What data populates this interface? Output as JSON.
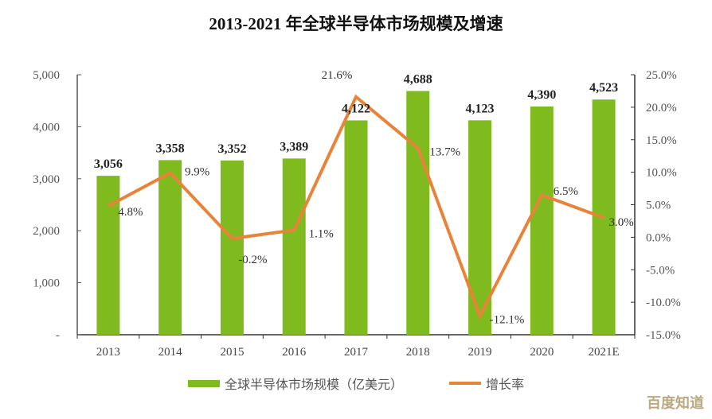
{
  "title": "2013-2021 年全球半导体市场规模及增速",
  "legend": {
    "bar_label": "全球半导体市场规模（亿美元）",
    "line_label": "增长率"
  },
  "watermark": "百度知道",
  "colors": {
    "bar": "#7fba1e",
    "line": "#e8833a",
    "axis": "#555555"
  },
  "chart_data": {
    "type": "bar+line",
    "title": "2013-2021 年全球半导体市场规模及增速",
    "categories": [
      "2013",
      "2014",
      "2015",
      "2016",
      "2017",
      "2018",
      "2019",
      "2020",
      "2021E"
    ],
    "series": [
      {
        "name": "全球半导体市场规模（亿美元）",
        "type": "bar",
        "axis": "left",
        "values": [
          3056,
          3358,
          3352,
          3389,
          4122,
          4688,
          4123,
          4390,
          4523
        ],
        "labels": [
          "3,056",
          "3,358",
          "3,352",
          "3,389",
          "4,122",
          "4,688",
          "4,123",
          "4,390",
          "4,523"
        ]
      },
      {
        "name": "增长率",
        "type": "line",
        "axis": "right",
        "values": [
          4.8,
          9.9,
          -0.2,
          1.1,
          21.6,
          13.7,
          -12.1,
          6.5,
          3.0
        ],
        "labels": [
          "4.8%",
          "9.9%",
          "-0.2%",
          "1.1%",
          "21.6%",
          "13.7%",
          "-12.1%",
          "6.5%",
          "3.0%"
        ]
      }
    ],
    "left_axis": {
      "ylim": [
        0,
        5000
      ],
      "ticks": [
        "-",
        "1,000",
        "2,000",
        "3,000",
        "4,000",
        "5,000"
      ]
    },
    "right_axis": {
      "ylim": [
        -15,
        25
      ],
      "ticks": [
        "-15.0%",
        "-10.0%",
        "-5.0%",
        "0.0%",
        "5.0%",
        "10.0%",
        "15.0%",
        "20.0%",
        "25.0%"
      ]
    },
    "xlabel": "",
    "ylabel": "",
    "grid": false,
    "legend_position": "bottom"
  }
}
